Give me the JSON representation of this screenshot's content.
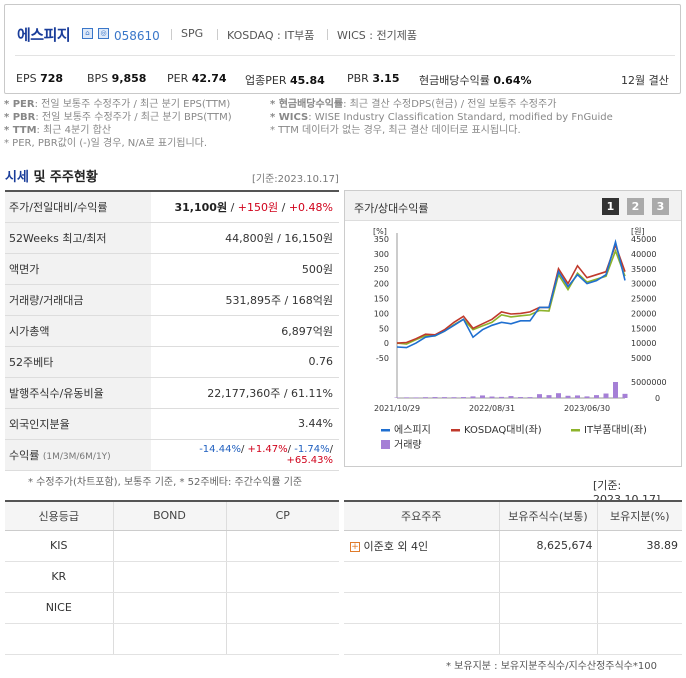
{
  "header": {
    "company_name": "에스피지",
    "stock_code": "058610",
    "ticker": "SPG",
    "market": "KOSDAQ : IT부품",
    "wics": "WICS : 전기제품",
    "metrics": [
      {
        "label": "EPS",
        "value": "728"
      },
      {
        "label": "BPS",
        "value": "9,858"
      },
      {
        "label": "PER",
        "value": "42.74"
      },
      {
        "label": "업종PER",
        "value": "45.84"
      },
      {
        "label": "PBR",
        "value": "3.15"
      },
      {
        "label": "현금배당수익률",
        "value": "0.64%"
      }
    ],
    "settle": "12월 결산"
  },
  "notes": [
    {
      "key": "* PER",
      "text": ": 전일 보통주 수정주가 / 최근 분기 EPS(TTM)"
    },
    {
      "key": "* 현금배당수익률",
      "text": ": 최근 결산 수정DPS(현금) / 전일 보통주 수정주가"
    },
    {
      "key": "* PBR",
      "text": ": 전일 보통주 수정주가 / 최근 분기 BPS(TTM)"
    },
    {
      "key": "* WICS",
      "text": ": WISE Industry Classification Standard, modified by FnGuide"
    },
    {
      "key": "* TTM",
      "text": ": 최근 4분기 합산"
    },
    {
      "key": "",
      "text": "* TTM 데이터가 없는 경우, 최근 결산 데이터로 표시됩니다."
    },
    {
      "key": "",
      "text": "* PER, PBR값이 (-)일 경우, N/A로 표기됩니다."
    }
  ],
  "section": {
    "title_a": "시세",
    "title_b": " 및 주주현황",
    "date": "[기준:2023.10.17]"
  },
  "price_table": [
    {
      "label": "주가/전일대비/수익률",
      "v1": "31,100원",
      "v2": "+150원",
      "v3": "+0.48%"
    },
    {
      "label": "52Weeks 최고/최저",
      "value": "44,800원 / 16,150원"
    },
    {
      "label": "액면가",
      "value": "500원"
    },
    {
      "label": "거래량/거래대금",
      "value": "531,895주 / 168억원"
    },
    {
      "label": "시가총액",
      "value": "6,897억원"
    },
    {
      "label": "52주베타",
      "value": "0.76"
    },
    {
      "label": "발행주식수/유동비율",
      "value": "22,177,360주 / 61.11%"
    },
    {
      "label": "외국인지분율",
      "value": "3.44%"
    },
    {
      "label": "수익률",
      "sub": "(1M/3M/6M/1Y)",
      "r1": "-14.44%",
      "r2": "+1.47%",
      "r3": "-1.74%",
      "r4": "+65.43%"
    }
  ],
  "price_note": "* 수정주가(차트포함), 보통주 기준, * 52주베타: 주간수익률 기준",
  "chart": {
    "title": "주가/상대수익률",
    "buttons": [
      "1",
      "2",
      "3"
    ],
    "left_unit": "[%]",
    "right_unit": "[원]",
    "left_ticks": [
      "350",
      "300",
      "250",
      "200",
      "150",
      "100",
      "50",
      "0",
      "-50"
    ],
    "right_ticks": [
      "45000",
      "40000",
      "35000",
      "30000",
      "25000",
      "20000",
      "15000",
      "10000",
      "5000"
    ],
    "vol_ticks": [
      "5000000",
      "0"
    ],
    "x_ticks": [
      "2021/10/29",
      "2022/08/31",
      "2023/06/30"
    ],
    "legend": [
      {
        "name": "에스피지",
        "color": "#1f6fd0"
      },
      {
        "name": "KOSDAQ대비(좌)",
        "color": "#c0392b"
      },
      {
        "name": "IT부품대비(좌)",
        "color": "#8db32b"
      },
      {
        "name": "거래량",
        "color": "#a57fd6"
      }
    ]
  },
  "chart_data": {
    "type": "line",
    "x": [
      "2021/10",
      "2021/11",
      "2021/12",
      "2022/01",
      "2022/02",
      "2022/03",
      "2022/04",
      "2022/05",
      "2022/06",
      "2022/07",
      "2022/08",
      "2022/09",
      "2022/10",
      "2022/11",
      "2022/12",
      "2023/01",
      "2023/02",
      "2023/03",
      "2023/04",
      "2023/05",
      "2023/06",
      "2023/07",
      "2023/08",
      "2023/09",
      "2023/10"
    ],
    "series": [
      {
        "name": "에스피지",
        "axis": "right",
        "values": [
          8700,
          8500,
          10000,
          12000,
          12500,
          14000,
          16000,
          18000,
          12000,
          14500,
          16000,
          17000,
          16500,
          17500,
          17500,
          22000,
          22000,
          34000,
          29000,
          33000,
          30000,
          31000,
          33000,
          44000,
          31100
        ]
      },
      {
        "name": "KOSDAQ대비(좌)",
        "axis": "left",
        "values": [
          0,
          2,
          15,
          30,
          28,
          45,
          70,
          90,
          50,
          65,
          80,
          105,
          98,
          100,
          105,
          120,
          120,
          250,
          200,
          260,
          220,
          230,
          240,
          330,
          240
        ]
      },
      {
        "name": "IT부품대비(좌)",
        "axis": "left",
        "values": [
          0,
          -3,
          12,
          25,
          24,
          40,
          62,
          80,
          45,
          58,
          70,
          95,
          88,
          92,
          95,
          110,
          108,
          230,
          180,
          235,
          205,
          215,
          225,
          310,
          225
        ]
      }
    ],
    "volume": [
      150000,
      200000,
      180000,
      260000,
      300000,
      280000,
      250000,
      300000,
      500000,
      800000,
      450000,
      350000,
      600000,
      300000,
      280000,
      1200000,
      900000,
      1500000,
      700000,
      800000,
      500000,
      900000,
      1400000,
      5000000,
      1300000
    ],
    "ylim_left": [
      -50,
      350
    ],
    "ylim_right": [
      5000,
      45000
    ]
  },
  "bond": {
    "date": "[기준: 2023.10.17]",
    "headers": [
      "신용등급",
      "BOND",
      "CP"
    ],
    "rows": [
      "KIS",
      "KR",
      "NICE",
      ""
    ]
  },
  "shareholders": {
    "headers": [
      "주요주주",
      "보유주식수(보통)",
      "보유지분(%)"
    ],
    "rows": [
      {
        "name": "이준호 외 4인",
        "shares": "8,625,674",
        "pct": "38.89"
      }
    ],
    "footnote": "* 보유지분 : 보유지분주식수/지수산정주식수*100"
  }
}
